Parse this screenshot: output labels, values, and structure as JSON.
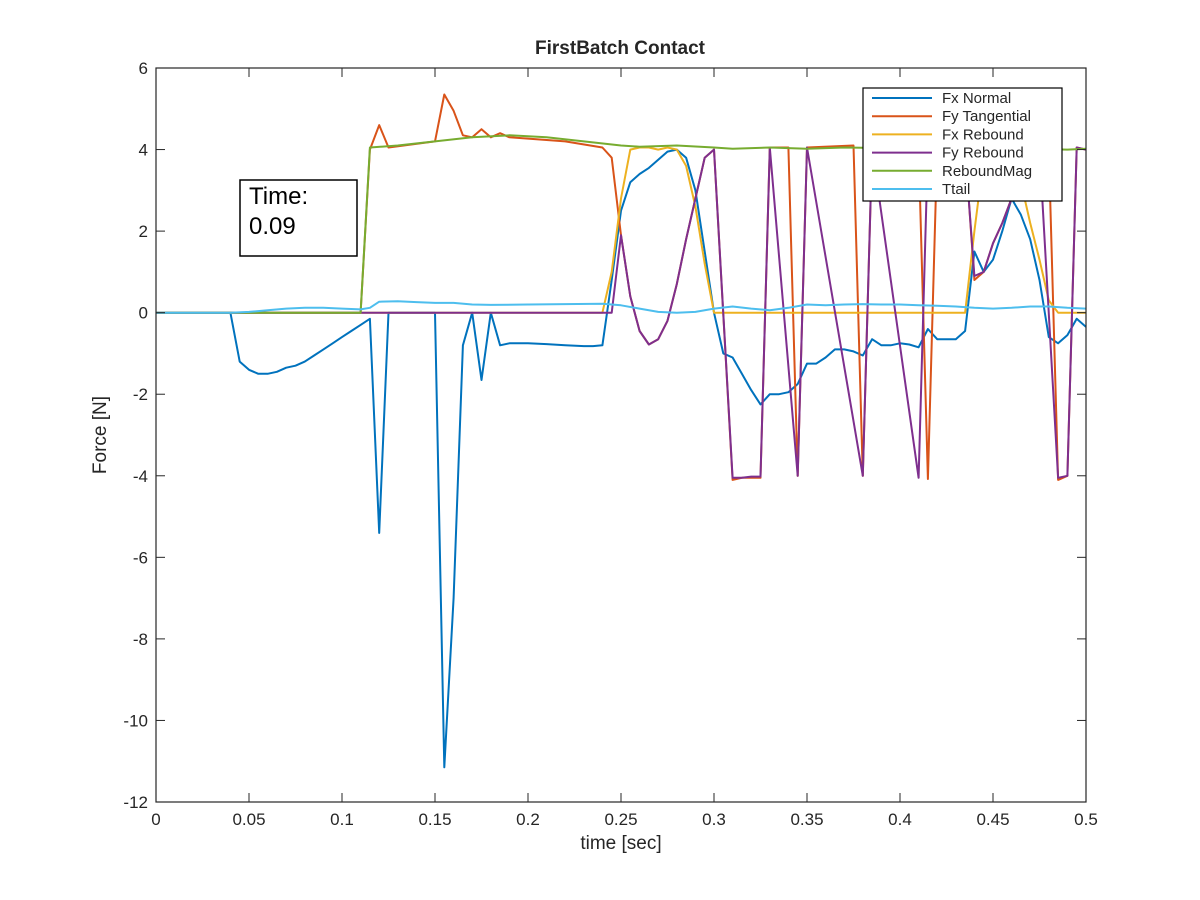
{
  "chart_data": {
    "type": "line",
    "title": "FirstBatch Contact",
    "xlabel": "time [sec]",
    "ylabel": "Force [N]",
    "xlim": [
      0,
      0.5
    ],
    "ylim": [
      -12,
      6
    ],
    "xticks": [
      0,
      0.05,
      0.1,
      0.15,
      0.2,
      0.25,
      0.3,
      0.35,
      0.4,
      0.45,
      0.5
    ],
    "xtick_labels": [
      "0",
      "0.05",
      "0.1",
      "0.15",
      "0.2",
      "0.25",
      "0.3",
      "0.35",
      "0.4",
      "0.45",
      "0.5"
    ],
    "yticks": [
      -12,
      -10,
      -8,
      -6,
      -4,
      -2,
      0,
      2,
      4,
      6
    ],
    "ytick_labels": [
      "-12",
      "-10",
      "-8",
      "-6",
      "-4",
      "-2",
      "0",
      "2",
      "4",
      "6"
    ],
    "grid": false,
    "legend_position": "top-right",
    "annotation": {
      "line1": "Time:",
      "line2": "0.09"
    },
    "series": [
      {
        "name": "Fx Normal",
        "color": "#0072BD",
        "points": [
          [
            0,
            0
          ],
          [
            0.04,
            0
          ],
          [
            0.045,
            -1.2
          ],
          [
            0.05,
            -1.4
          ],
          [
            0.055,
            -1.5
          ],
          [
            0.06,
            -1.5
          ],
          [
            0.065,
            -1.45
          ],
          [
            0.07,
            -1.35
          ],
          [
            0.075,
            -1.3
          ],
          [
            0.08,
            -1.2
          ],
          [
            0.085,
            -1.05
          ],
          [
            0.09,
            -0.9
          ],
          [
            0.095,
            -0.75
          ],
          [
            0.1,
            -0.6
          ],
          [
            0.105,
            -0.45
          ],
          [
            0.11,
            -0.3
          ],
          [
            0.115,
            -0.15
          ],
          [
            0.12,
            -5.4
          ],
          [
            0.125,
            0
          ],
          [
            0.15,
            0
          ],
          [
            0.155,
            -11.15
          ],
          [
            0.16,
            -7
          ],
          [
            0.165,
            -0.8
          ],
          [
            0.17,
            0
          ],
          [
            0.175,
            -1.65
          ],
          [
            0.18,
            0
          ],
          [
            0.185,
            -0.8
          ],
          [
            0.19,
            -0.75
          ],
          [
            0.2,
            -0.75
          ],
          [
            0.21,
            -0.77
          ],
          [
            0.22,
            -0.8
          ],
          [
            0.23,
            -0.82
          ],
          [
            0.235,
            -0.82
          ],
          [
            0.24,
            -0.8
          ],
          [
            0.245,
            0.8
          ],
          [
            0.25,
            2.5
          ],
          [
            0.255,
            3.2
          ],
          [
            0.26,
            3.4
          ],
          [
            0.265,
            3.55
          ],
          [
            0.27,
            3.75
          ],
          [
            0.275,
            3.95
          ],
          [
            0.28,
            4.0
          ],
          [
            0.285,
            3.8
          ],
          [
            0.29,
            3.0
          ],
          [
            0.295,
            1.5
          ],
          [
            0.3,
            0
          ],
          [
            0.305,
            -1.0
          ],
          [
            0.31,
            -1.1
          ],
          [
            0.315,
            -1.5
          ],
          [
            0.32,
            -1.9
          ],
          [
            0.325,
            -2.25
          ],
          [
            0.33,
            -2.0
          ],
          [
            0.335,
            -2.0
          ],
          [
            0.34,
            -1.95
          ],
          [
            0.345,
            -1.75
          ],
          [
            0.35,
            -1.25
          ],
          [
            0.355,
            -1.25
          ],
          [
            0.36,
            -1.1
          ],
          [
            0.365,
            -0.9
          ],
          [
            0.37,
            -0.9
          ],
          [
            0.375,
            -0.95
          ],
          [
            0.38,
            -1.05
          ],
          [
            0.385,
            -0.65
          ],
          [
            0.39,
            -0.8
          ],
          [
            0.395,
            -0.8
          ],
          [
            0.4,
            -0.75
          ],
          [
            0.405,
            -0.78
          ],
          [
            0.41,
            -0.85
          ],
          [
            0.415,
            -0.4
          ],
          [
            0.42,
            -0.65
          ],
          [
            0.425,
            -0.65
          ],
          [
            0.43,
            -0.65
          ],
          [
            0.435,
            -0.45
          ],
          [
            0.44,
            1.5
          ],
          [
            0.445,
            1.0
          ],
          [
            0.45,
            1.3
          ],
          [
            0.455,
            2.0
          ],
          [
            0.46,
            2.8
          ],
          [
            0.465,
            2.4
          ],
          [
            0.47,
            1.8
          ],
          [
            0.475,
            0.8
          ],
          [
            0.48,
            -0.6
          ],
          [
            0.485,
            -0.75
          ],
          [
            0.49,
            -0.55
          ],
          [
            0.495,
            -0.15
          ],
          [
            0.5,
            -0.35
          ]
        ]
      },
      {
        "name": "Fy Tangential",
        "color": "#D95319",
        "points": [
          [
            0,
            0
          ],
          [
            0.11,
            0
          ],
          [
            0.115,
            4.0
          ],
          [
            0.12,
            4.6
          ],
          [
            0.125,
            4.05
          ],
          [
            0.15,
            4.2
          ],
          [
            0.155,
            5.35
          ],
          [
            0.16,
            4.95
          ],
          [
            0.165,
            4.35
          ],
          [
            0.17,
            4.3
          ],
          [
            0.175,
            4.5
          ],
          [
            0.18,
            4.3
          ],
          [
            0.185,
            4.4
          ],
          [
            0.19,
            4.3
          ],
          [
            0.22,
            4.2
          ],
          [
            0.24,
            4.05
          ],
          [
            0.245,
            3.8
          ],
          [
            0.25,
            1.9
          ],
          [
            0.255,
            0.4
          ],
          [
            0.26,
            -0.45
          ],
          [
            0.265,
            -0.78
          ],
          [
            0.27,
            -0.65
          ],
          [
            0.275,
            -0.2
          ],
          [
            0.28,
            0.7
          ],
          [
            0.285,
            1.8
          ],
          [
            0.29,
            2.8
          ],
          [
            0.295,
            3.8
          ],
          [
            0.3,
            4.0
          ],
          [
            0.31,
            -4.1
          ],
          [
            0.315,
            -4.05
          ],
          [
            0.32,
            -4.05
          ],
          [
            0.325,
            -4.05
          ],
          [
            0.33,
            4.05
          ],
          [
            0.335,
            4.05
          ],
          [
            0.34,
            4.05
          ],
          [
            0.345,
            -4.0
          ],
          [
            0.35,
            4.05
          ],
          [
            0.375,
            4.1
          ],
          [
            0.38,
            -4.0
          ],
          [
            0.385,
            4.05
          ],
          [
            0.41,
            4.05
          ],
          [
            0.415,
            -4.08
          ],
          [
            0.42,
            4.05
          ],
          [
            0.435,
            4.05
          ],
          [
            0.44,
            0.8
          ],
          [
            0.445,
            1.0
          ],
          [
            0.45,
            1.7
          ],
          [
            0.455,
            2.2
          ],
          [
            0.46,
            2.8
          ],
          [
            0.465,
            3.2
          ],
          [
            0.47,
            3.6
          ],
          [
            0.475,
            4.0
          ],
          [
            0.48,
            4.0
          ],
          [
            0.485,
            -4.1
          ],
          [
            0.49,
            -4.0
          ],
          [
            0.495,
            4.05
          ],
          [
            0.5,
            4.0
          ]
        ]
      },
      {
        "name": "Fx Rebound",
        "color": "#EDB120",
        "points": [
          [
            0,
            0
          ],
          [
            0.24,
            0
          ],
          [
            0.245,
            1.0
          ],
          [
            0.25,
            2.8
          ],
          [
            0.255,
            4.0
          ],
          [
            0.26,
            4.05
          ],
          [
            0.265,
            4.05
          ],
          [
            0.27,
            4.0
          ],
          [
            0.275,
            4.05
          ],
          [
            0.28,
            4.0
          ],
          [
            0.285,
            3.6
          ],
          [
            0.29,
            2.6
          ],
          [
            0.295,
            1.2
          ],
          [
            0.3,
            0
          ],
          [
            0.435,
            0
          ],
          [
            0.44,
            2.0
          ],
          [
            0.445,
            3.8
          ],
          [
            0.45,
            4.0
          ],
          [
            0.46,
            4.0
          ],
          [
            0.465,
            3.2
          ],
          [
            0.47,
            2.2
          ],
          [
            0.475,
            1.3
          ],
          [
            0.48,
            0.3
          ],
          [
            0.485,
            0
          ],
          [
            0.5,
            0
          ]
        ]
      },
      {
        "name": "Fy Rebound",
        "color": "#7E2F8E",
        "points": [
          [
            0,
            0
          ],
          [
            0.245,
            0
          ],
          [
            0.25,
            1.9
          ],
          [
            0.255,
            0.4
          ],
          [
            0.26,
            -0.45
          ],
          [
            0.265,
            -0.78
          ],
          [
            0.27,
            -0.65
          ],
          [
            0.275,
            -0.2
          ],
          [
            0.28,
            0.7
          ],
          [
            0.285,
            1.8
          ],
          [
            0.29,
            2.8
          ],
          [
            0.295,
            3.8
          ],
          [
            0.3,
            4.0
          ],
          [
            0.31,
            -4.05
          ],
          [
            0.315,
            -4.05
          ],
          [
            0.32,
            -4.02
          ],
          [
            0.325,
            -4.02
          ],
          [
            0.33,
            4.05
          ],
          [
            0.345,
            -4.0
          ],
          [
            0.35,
            4.05
          ],
          [
            0.38,
            -4.0
          ],
          [
            0.385,
            4.05
          ],
          [
            0.41,
            -4.05
          ],
          [
            0.415,
            4.05
          ],
          [
            0.435,
            4.0
          ],
          [
            0.44,
            0.9
          ],
          [
            0.445,
            1.0
          ],
          [
            0.45,
            1.7
          ],
          [
            0.455,
            2.2
          ],
          [
            0.46,
            2.8
          ],
          [
            0.465,
            3.2
          ],
          [
            0.47,
            3.6
          ],
          [
            0.475,
            4.0
          ],
          [
            0.485,
            -4.05
          ],
          [
            0.49,
            -4.0
          ],
          [
            0.495,
            4.05
          ],
          [
            0.5,
            4.0
          ]
        ]
      },
      {
        "name": "ReboundMag",
        "color": "#77AC30",
        "points": [
          [
            0,
            0
          ],
          [
            0.11,
            0
          ],
          [
            0.115,
            4.05
          ],
          [
            0.13,
            4.1
          ],
          [
            0.15,
            4.2
          ],
          [
            0.17,
            4.3
          ],
          [
            0.19,
            4.35
          ],
          [
            0.21,
            4.3
          ],
          [
            0.23,
            4.2
          ],
          [
            0.25,
            4.1
          ],
          [
            0.26,
            4.07
          ],
          [
            0.28,
            4.1
          ],
          [
            0.3,
            4.05
          ],
          [
            0.31,
            4.02
          ],
          [
            0.33,
            4.05
          ],
          [
            0.35,
            4.02
          ],
          [
            0.37,
            4.05
          ],
          [
            0.4,
            4.03
          ],
          [
            0.43,
            4.02
          ],
          [
            0.45,
            4.05
          ],
          [
            0.47,
            4.02
          ],
          [
            0.49,
            4.0
          ],
          [
            0.5,
            4.02
          ]
        ]
      },
      {
        "name": "Ttail",
        "color": "#4DBEEE",
        "points": [
          [
            0,
            0
          ],
          [
            0.04,
            0
          ],
          [
            0.05,
            0.02
          ],
          [
            0.06,
            0.06
          ],
          [
            0.07,
            0.1
          ],
          [
            0.08,
            0.12
          ],
          [
            0.09,
            0.12
          ],
          [
            0.1,
            0.1
          ],
          [
            0.11,
            0.08
          ],
          [
            0.115,
            0.12
          ],
          [
            0.12,
            0.27
          ],
          [
            0.13,
            0.28
          ],
          [
            0.14,
            0.26
          ],
          [
            0.15,
            0.24
          ],
          [
            0.16,
            0.24
          ],
          [
            0.17,
            0.2
          ],
          [
            0.18,
            0.19
          ],
          [
            0.2,
            0.2
          ],
          [
            0.22,
            0.21
          ],
          [
            0.24,
            0.22
          ],
          [
            0.25,
            0.18
          ],
          [
            0.26,
            0.1
          ],
          [
            0.27,
            0.02
          ],
          [
            0.28,
            0.0
          ],
          [
            0.29,
            0.02
          ],
          [
            0.3,
            0.1
          ],
          [
            0.31,
            0.15
          ],
          [
            0.32,
            0.1
          ],
          [
            0.33,
            0.06
          ],
          [
            0.34,
            0.12
          ],
          [
            0.35,
            0.2
          ],
          [
            0.36,
            0.18
          ],
          [
            0.37,
            0.2
          ],
          [
            0.38,
            0.21
          ],
          [
            0.39,
            0.2
          ],
          [
            0.4,
            0.2
          ],
          [
            0.41,
            0.18
          ],
          [
            0.42,
            0.17
          ],
          [
            0.43,
            0.15
          ],
          [
            0.44,
            0.12
          ],
          [
            0.45,
            0.1
          ],
          [
            0.46,
            0.12
          ],
          [
            0.47,
            0.15
          ],
          [
            0.48,
            0.15
          ],
          [
            0.49,
            0.12
          ],
          [
            0.5,
            0.1
          ]
        ]
      }
    ]
  }
}
